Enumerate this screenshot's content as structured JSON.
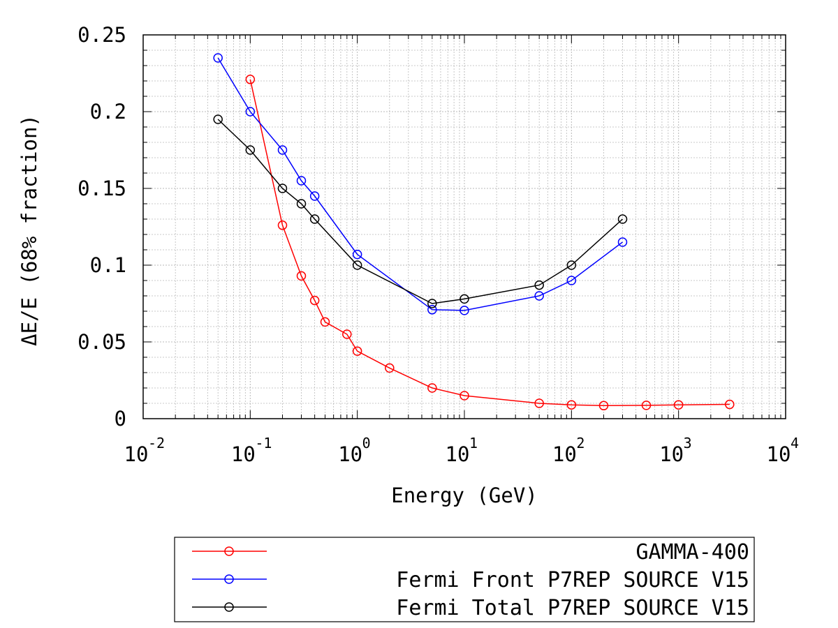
{
  "chart_data": {
    "type": "line",
    "title": "",
    "xlabel": "Energy (GeV)",
    "ylabel": "ΔE/E (68% fraction)",
    "xscale": "log",
    "xlim": [
      0.01,
      10000
    ],
    "ylim": [
      0,
      0.25
    ],
    "grid": true,
    "legend_position": "below",
    "x_ticks": [
      {
        "base": "10",
        "exp": "-2",
        "value": 0.01
      },
      {
        "base": "10",
        "exp": "-1",
        "value": 0.1
      },
      {
        "base": "10",
        "exp": "0",
        "value": 1
      },
      {
        "base": "10",
        "exp": "1",
        "value": 10
      },
      {
        "base": "10",
        "exp": "2",
        "value": 100
      },
      {
        "base": "10",
        "exp": "3",
        "value": 1000
      },
      {
        "base": "10",
        "exp": "4",
        "value": 10000
      }
    ],
    "y_ticks": [
      {
        "label": "0",
        "value": 0
      },
      {
        "label": "0.05",
        "value": 0.05
      },
      {
        "label": "0.1",
        "value": 0.1
      },
      {
        "label": "0.15",
        "value": 0.15
      },
      {
        "label": "0.2",
        "value": 0.2
      },
      {
        "label": "0.25",
        "value": 0.25
      }
    ],
    "series": [
      {
        "name": "GAMMA-400",
        "color": "#ff0000",
        "x": [
          0.1,
          0.2,
          0.3,
          0.4,
          0.5,
          0.8,
          1,
          2,
          5,
          10,
          50,
          100,
          200,
          500,
          1000,
          3000
        ],
        "y": [
          0.221,
          0.126,
          0.093,
          0.077,
          0.063,
          0.055,
          0.044,
          0.033,
          0.02,
          0.015,
          0.01,
          0.009,
          0.0085,
          0.0087,
          0.009,
          0.0093
        ]
      },
      {
        "name": "Fermi Front P7REP SOURCE V15",
        "color": "#0000ff",
        "x": [
          0.05,
          0.1,
          0.2,
          0.3,
          0.4,
          1,
          5,
          10,
          50,
          100,
          300
        ],
        "y": [
          0.235,
          0.2,
          0.175,
          0.155,
          0.145,
          0.107,
          0.071,
          0.0705,
          0.08,
          0.09,
          0.115
        ]
      },
      {
        "name": "Fermi Total P7REP SOURCE V15",
        "color": "#000000",
        "x": [
          0.05,
          0.1,
          0.2,
          0.3,
          0.4,
          1,
          5,
          10,
          50,
          100,
          300
        ],
        "y": [
          0.195,
          0.175,
          0.15,
          0.14,
          0.13,
          0.1,
          0.075,
          0.078,
          0.087,
          0.1,
          0.13
        ]
      }
    ]
  }
}
